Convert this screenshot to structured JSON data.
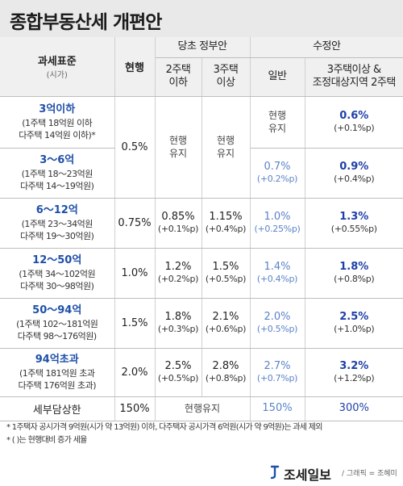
{
  "title": "종합부동산세 개편안",
  "header": {
    "standard": "과세표준",
    "standard_sub": "(시가)",
    "current": "현행",
    "gov_plan": "당초 정부안",
    "gov_2": "2주택\n이하",
    "gov_3": "3주택\n이상",
    "revised": "수정안",
    "rev_general": "일반",
    "rev_3": "3주택이상 &\n조정대상지역 2주택"
  },
  "rows": [
    {
      "bracket": "3억이하",
      "detail": "(1주택 18억원 이하\n다주택 14억원 이하)*",
      "rev_general": "현행\n유지",
      "rev_3": "0.6%",
      "rev_3_chg": "(+0.1%p)"
    },
    {
      "bracket": "3～6억",
      "detail": "(1주택 18～23억원\n다주택 14～19억원)",
      "rev_general": "0.7%",
      "rev_general_chg": "(+0.2%p)",
      "rev_3": "0.9%",
      "rev_3_chg": "(+0.4%p)"
    },
    {
      "bracket": "6～12억",
      "detail": "(1주택 23～34억원\n다주택 19～30억원)",
      "current": "0.75%",
      "gov_2": "0.85%",
      "gov_2_chg": "(+0.1%p)",
      "gov_3": "1.15%",
      "gov_3_chg": "(+0.4%p)",
      "rev_general": "1.0%",
      "rev_general_chg": "(+0.25%p)",
      "rev_3": "1.3%",
      "rev_3_chg": "(+0.55%p)"
    },
    {
      "bracket": "12～50억",
      "detail": "(1주택 34～102억원\n다주택 30～98억원)",
      "current": "1.0%",
      "gov_2": "1.2%",
      "gov_2_chg": "(+0.2%p)",
      "gov_3": "1.5%",
      "gov_3_chg": "(+0.5%p)",
      "rev_general": "1.4%",
      "rev_general_chg": "(+0.4%p)",
      "rev_3": "1.8%",
      "rev_3_chg": "(+0.8%p)"
    },
    {
      "bracket": "50～94억",
      "detail": "(1주택 102～181억원\n다주택 98～176억원)",
      "current": "1.5%",
      "gov_2": "1.8%",
      "gov_2_chg": "(+0.3%p)",
      "gov_3": "2.1%",
      "gov_3_chg": "(+0.6%p)",
      "rev_general": "2.0%",
      "rev_general_chg": "(+0.5%p)",
      "rev_3": "2.5%",
      "rev_3_chg": "(+1.0%p)"
    },
    {
      "bracket": "94억초과",
      "detail": "(1주택 181억원 초과\n다주택 176억원 초과)",
      "current": "2.0%",
      "gov_2": "2.5%",
      "gov_2_chg": "(+0.5%p)",
      "gov_3": "2.8%",
      "gov_3_chg": "(+0.8%p)",
      "rev_general": "2.7%",
      "rev_general_chg": "(+0.7%p)",
      "rev_3": "3.2%",
      "rev_3_chg": "(+1.2%p)"
    }
  ],
  "merged": {
    "current_first": "0.5%",
    "gov_keep_2": "현행\n유지",
    "gov_keep_3": "현행\n유지"
  },
  "last_row": {
    "label": "세부담상한",
    "current": "150%",
    "gov": "현행유지",
    "rev_general": "150%",
    "rev_3": "300%"
  },
  "footnotes": [
    "* 1주택자 공시가격 9억원(시가 약 13억원) 이하, 다주택자 공시가격 6억원(시가 약 9억원)는 과세 제외",
    " * ( )는 현행대비 증가 세율"
  ],
  "footer": {
    "logo": "조세일보",
    "credit": "/ 그래픽 = 조혜미"
  },
  "colors": {
    "title_bg": "#e9e9e9",
    "header_bg": "#f0f0f0",
    "bracket_blue": "#1e4fa8",
    "light_blue": "#5b83c9",
    "bold_blue": "#1e3fa8"
  }
}
